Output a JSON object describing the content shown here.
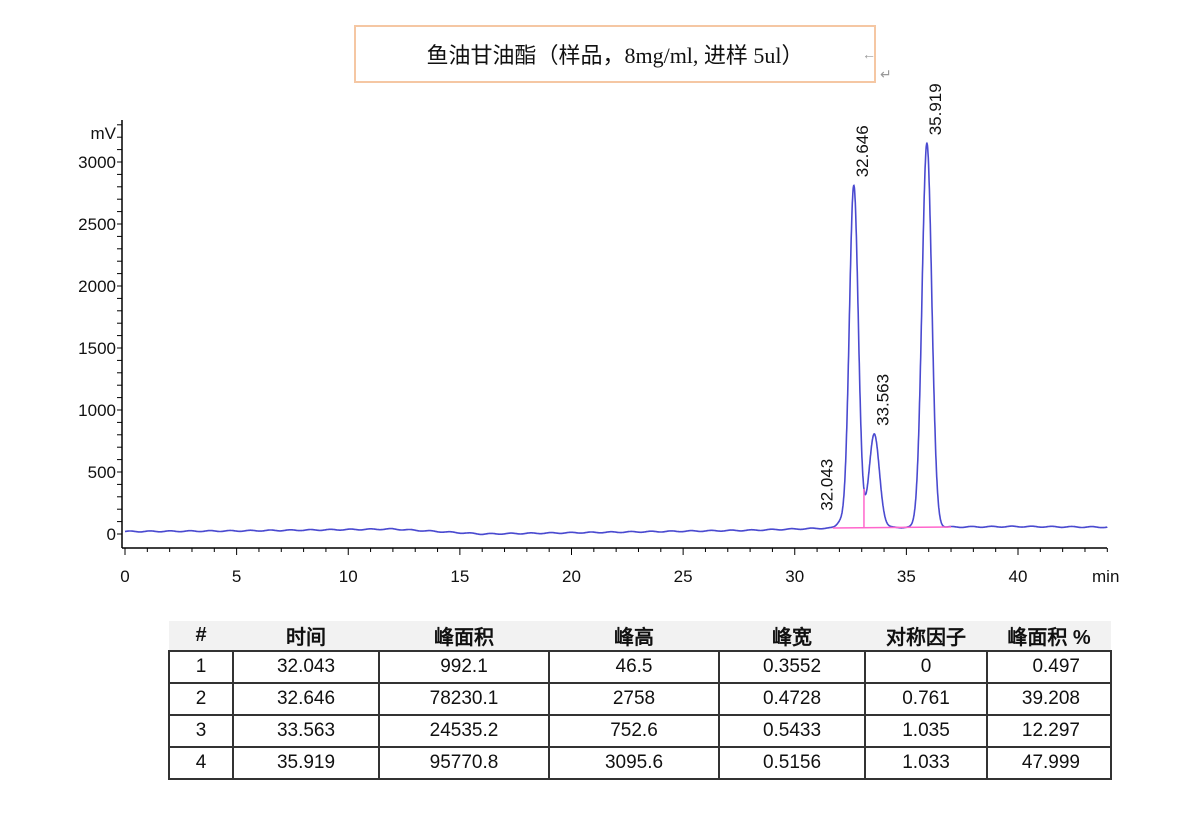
{
  "title": "鱼油甘油酯（样品，8mg/ml, 进样  5ul）",
  "chart_data": {
    "type": "line",
    "xlabel": "min",
    "ylabel": "mV",
    "xlim": [
      0,
      44
    ],
    "ylim": [
      -100,
      3350
    ],
    "x_ticks": [
      0,
      5,
      10,
      15,
      20,
      25,
      30,
      35,
      40
    ],
    "y_ticks": [
      0,
      500,
      1000,
      1500,
      2000,
      2500,
      3000
    ],
    "line_color": "#4a4ad0",
    "integration_color": "#ff66cc",
    "grid": false,
    "baseline": [
      [
        0,
        20
      ],
      [
        5,
        25
      ],
      [
        12,
        40
      ],
      [
        16,
        0
      ],
      [
        20,
        10
      ],
      [
        28,
        30
      ],
      [
        32,
        50
      ],
      [
        40,
        60
      ],
      [
        44,
        55
      ]
    ],
    "peaks": [
      {
        "label": "32.043",
        "time": 32.043,
        "height": 46.5,
        "width": 0.3552
      },
      {
        "label": "32.646",
        "time": 32.646,
        "height": 2758,
        "width": 0.4728
      },
      {
        "label": "33.563",
        "time": 33.563,
        "height": 752.6,
        "width": 0.5433
      },
      {
        "label": "35.919",
        "time": 35.919,
        "height": 3095.6,
        "width": 0.5156
      }
    ]
  },
  "table": {
    "headers": [
      "#",
      "时间",
      "峰面积",
      "峰高",
      "峰宽",
      "对称因子",
      "峰面积 %"
    ],
    "rows": [
      [
        "1",
        "32.043",
        "992.1",
        "46.5",
        "0.3552",
        "0",
        "0.497"
      ],
      [
        "2",
        "32.646",
        "78230.1",
        "2758",
        "0.4728",
        "0.761",
        "39.208"
      ],
      [
        "3",
        "33.563",
        "24535.2",
        "752.6",
        "0.5433",
        "1.035",
        "12.297"
      ],
      [
        "4",
        "35.919",
        "95770.8",
        "3095.6",
        "0.5156",
        "1.033",
        "47.999"
      ]
    ]
  }
}
